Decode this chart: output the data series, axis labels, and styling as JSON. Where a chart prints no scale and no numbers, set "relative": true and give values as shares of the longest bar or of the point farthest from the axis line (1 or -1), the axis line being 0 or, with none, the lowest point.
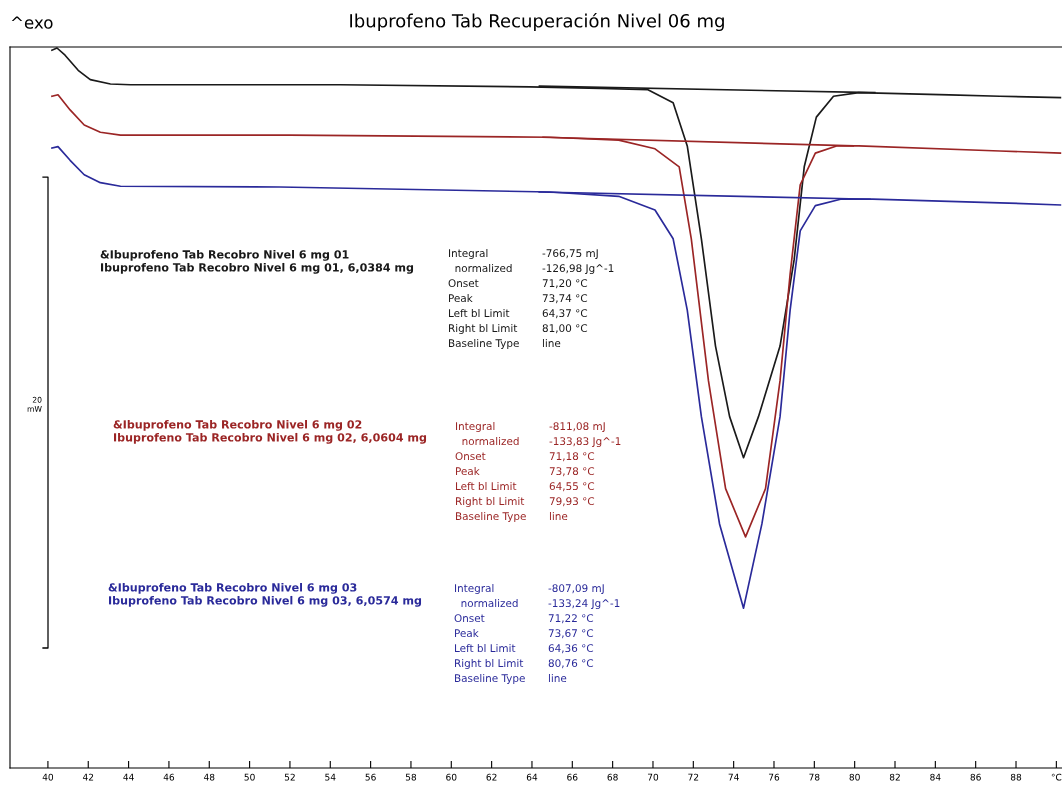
{
  "chart_data": {
    "type": "line",
    "title": "Ibuprofeno Tab Recuperación Nivel 06 mg",
    "relative": true,
    "grid": false,
    "tick_labels": "x",
    "xlim": [
      38.12,
      90.28
    ],
    "xticks": [
      40,
      42,
      44,
      46,
      48,
      50,
      52,
      54,
      56,
      58,
      60,
      62,
      64,
      66,
      68,
      70,
      72,
      74,
      76,
      78,
      80,
      82,
      84,
      86,
      88,
      {
        "value": 90,
        "label": "°C"
      }
    ],
    "series": [
      {
        "color": "#1a1a1a",
        "x": [
          40.2,
          40.45,
          40.85,
          41.5,
          42.1,
          43.1,
          44.1,
          54.5,
          63.9,
          67.4,
          69.75,
          71.0,
          71.7,
          72.4,
          73.1,
          73.8,
          74.49,
          75.23,
          76.3,
          77.0,
          77.5,
          78.1,
          78.95,
          80.2,
          84.7,
          87.2,
          90.2
        ],
        "values": [
          0.997,
          1.0,
          0.99,
          0.969,
          0.956,
          0.95,
          0.949,
          0.949,
          0.946,
          0.944,
          0.942,
          0.924,
          0.864,
          0.735,
          0.586,
          0.488,
          0.431,
          0.488,
          0.586,
          0.706,
          0.835,
          0.904,
          0.933,
          0.938,
          0.935,
          0.933,
          0.931
        ]
      },
      {
        "color": "#9b2525",
        "x": [
          40.2,
          40.5,
          41.1,
          41.8,
          42.6,
          43.6,
          52,
          64.9,
          68.3,
          70.1,
          71.3,
          71.9,
          72.75,
          73.6,
          74.59,
          75.58,
          76.3,
          76.8,
          77.3,
          78.05,
          79.1,
          80.2,
          87.2,
          90.2
        ],
        "values": [
          0.933,
          0.935,
          0.914,
          0.893,
          0.883,
          0.879,
          0.879,
          0.876,
          0.872,
          0.86,
          0.835,
          0.735,
          0.538,
          0.388,
          0.321,
          0.388,
          0.538,
          0.686,
          0.81,
          0.854,
          0.864,
          0.864,
          0.857,
          0.854
        ]
      },
      {
        "color": "#2a2a9a",
        "x": [
          40.2,
          40.5,
          41.1,
          41.8,
          42.6,
          43.6,
          51.5,
          64.9,
          68.3,
          70.1,
          71.0,
          71.7,
          72.4,
          73.3,
          74.49,
          75.4,
          76.3,
          76.8,
          77.3,
          78.05,
          79.3,
          80.9,
          87.2,
          90.2
        ],
        "values": [
          0.861,
          0.863,
          0.844,
          0.824,
          0.813,
          0.808,
          0.807,
          0.8,
          0.794,
          0.775,
          0.735,
          0.636,
          0.488,
          0.339,
          0.222,
          0.339,
          0.488,
          0.636,
          0.746,
          0.781,
          0.79,
          0.79,
          0.785,
          0.782
        ]
      },
      {
        "color": "#1a1a1a",
        "x": [
          64.37,
          81.0
        ],
        "values": [
          0.947,
          0.938
        ]
      },
      {
        "color": "#9b2525",
        "x": [
          64.55,
          79.93
        ],
        "values": [
          0.876,
          0.864
        ]
      },
      {
        "color": "#2a2a9a",
        "x": [
          64.36,
          80.76
        ],
        "values": [
          0.8,
          0.79
        ]
      }
    ],
    "annotations": [
      "^exo",
      "&Ibuprofeno Tab Recobro Nivel 6 mg 01\nIbuprofeno Tab Recobro Nivel 6 mg 01, 6,0384 mg",
      "Integral\t-766,75 mJ\n  normalized\t-126,98 Jg^-1\nOnset\t71,20 °C\nPeak\t73,74 °C\nLeft bl Limit\t64,37 °C\nRight bl Limit\t81,00 °C\nBaseline Type\tline",
      "&Ibuprofeno Tab Recobro Nivel 6 mg 02\nIbuprofeno Tab Recobro Nivel 6 mg 02, 6,0604 mg",
      "Integral\t-811,08 mJ\n  normalized\t-133,83 Jg^-1\nOnset\t71,18 °C\nPeak\t73,78 °C\nLeft bl Limit\t64,55 °C\nRight bl Limit\t79,93 °C\nBaseline Type\tline",
      "&Ibuprofeno Tab Recobro Nivel 6 mg 03\nIbuprofeno Tab Recobro Nivel 6 mg 03, 6,0574 mg",
      "Integral\t-807,09 mJ\n  normalized\t-133,24 Jg^-1\nOnset\t71,22 °C\nPeak\t73,67 °C\nLeft bl Limit\t64,36 °C\nRight bl Limit\t80,76 °C\nBaseline Type\tline",
      "20\nmW"
    ]
  }
}
